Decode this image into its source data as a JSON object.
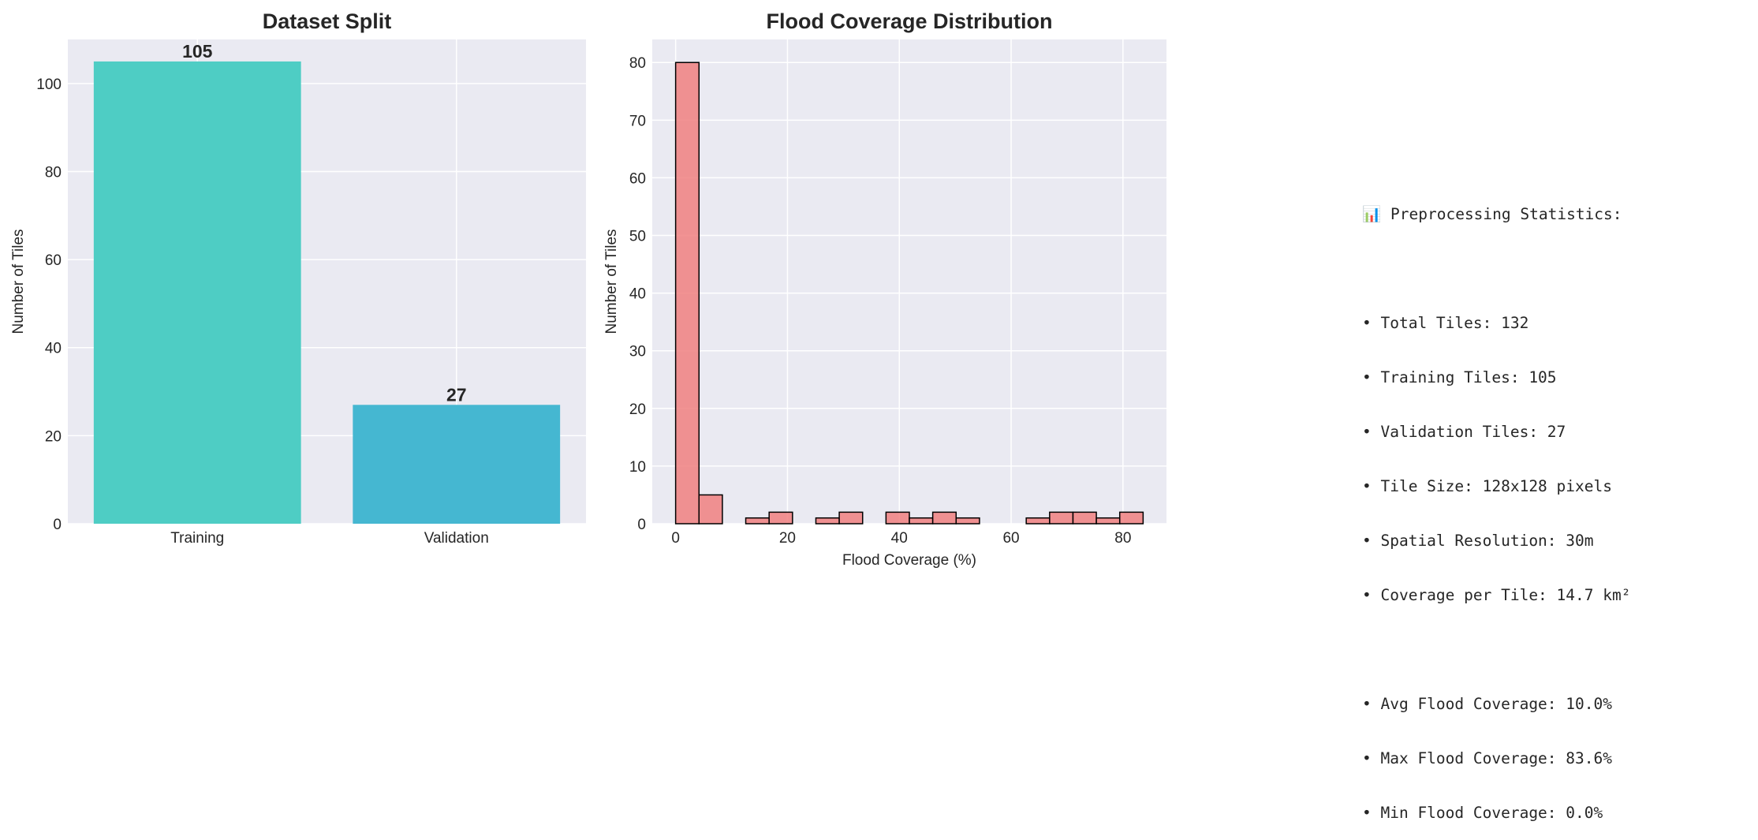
{
  "chart_data": [
    {
      "type": "bar",
      "title": "Dataset Split",
      "categories": [
        "Training",
        "Validation"
      ],
      "values": [
        105,
        27
      ],
      "data_labels": [
        "105",
        "27"
      ],
      "colors": [
        "#4ecdc4",
        "#45b7d1"
      ],
      "xlabel": "",
      "ylabel": "Number of Tiles",
      "ylim": [
        0,
        110
      ],
      "yticks": [
        0,
        20,
        40,
        60,
        80,
        100
      ],
      "grid": true
    },
    {
      "type": "bar",
      "title": "Flood Coverage Distribution",
      "xlabel": "Flood Coverage (%)",
      "ylabel": "Number of Tiles",
      "bin_edges": [
        0,
        4.18,
        8.36,
        12.54,
        16.72,
        20.9,
        25.08,
        29.26,
        33.44,
        37.62,
        41.8,
        45.98,
        50.16,
        54.34,
        58.52,
        62.7,
        66.88,
        71.06,
        75.24,
        79.42,
        83.6
      ],
      "counts": [
        80,
        5,
        0,
        1,
        2,
        0,
        1,
        2,
        0,
        2,
        1,
        2,
        1,
        0,
        0,
        1,
        2,
        2,
        1,
        2
      ],
      "color": "#f08080",
      "edgecolor": "#000000",
      "xlim": [
        -4.18,
        87.78
      ],
      "ylim": [
        0,
        84
      ],
      "xticks": [
        0,
        20,
        40,
        60,
        80
      ],
      "yticks": [
        0,
        10,
        20,
        30,
        40,
        50,
        60,
        70,
        80
      ],
      "grid": true
    }
  ],
  "stats_panel": {
    "heading": "📊 Preprocessing Statistics:",
    "group1": [
      "• Total Tiles: 132",
      "• Training Tiles: 105",
      "• Validation Tiles: 27",
      "• Tile Size: 128x128 pixels",
      "• Spatial Resolution: 30m",
      "• Coverage per Tile: 14.7 km²"
    ],
    "group2": [
      "• Avg Flood Coverage: 10.0%",
      "• Max Flood Coverage: 83.6%",
      "• Min Flood Coverage: 0.0%"
    ]
  }
}
